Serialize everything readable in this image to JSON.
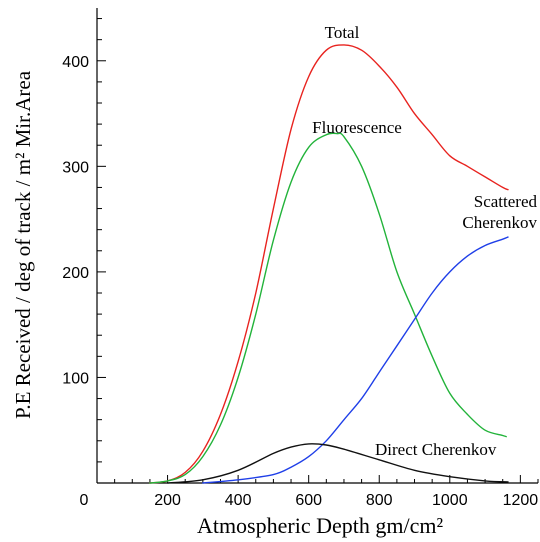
{
  "chart_data": {
    "type": "line",
    "xlabel": "Atmospheric Depth   gm/cm²",
    "ylabel": "P.E Received / deg of track / m² Mir.Area",
    "xlim": [
      0,
      1250
    ],
    "ylim": [
      0,
      450
    ],
    "x_ticks": [
      0,
      200,
      400,
      600,
      800,
      1000,
      1200
    ],
    "y_ticks": [
      100,
      200,
      300,
      400
    ],
    "grid": false,
    "series": [
      {
        "name": "Total",
        "color": "#e8231f",
        "x": [
          150,
          200,
          250,
          300,
          350,
          400,
          450,
          500,
          550,
          600,
          650,
          700,
          750,
          800,
          850,
          900,
          950,
          1000,
          1050,
          1100,
          1150,
          1165
        ],
        "y": [
          0,
          2,
          10,
          30,
          65,
          115,
          180,
          260,
          335,
          385,
          410,
          415,
          410,
          395,
          375,
          350,
          330,
          310,
          300,
          290,
          280,
          278
        ]
      },
      {
        "name": "Fluorescence",
        "color": "#22b33a",
        "x": [
          150,
          200,
          250,
          300,
          350,
          400,
          450,
          500,
          550,
          600,
          650,
          680,
          700,
          750,
          800,
          850,
          900,
          950,
          1000,
          1050,
          1100,
          1150,
          1160
        ],
        "y": [
          0,
          2,
          8,
          25,
          55,
          100,
          160,
          230,
          285,
          318,
          330,
          331,
          328,
          300,
          255,
          200,
          160,
          120,
          85,
          65,
          50,
          45,
          44
        ]
      },
      {
        "name": "Scattered Cherenkov",
        "color": "#1f3fe8",
        "x": [
          300,
          400,
          500,
          550,
          600,
          650,
          700,
          750,
          800,
          850,
          900,
          950,
          1000,
          1050,
          1100,
          1150,
          1165
        ],
        "y": [
          0,
          3,
          8,
          15,
          25,
          40,
          60,
          80,
          105,
          130,
          155,
          180,
          200,
          215,
          225,
          231,
          233
        ]
      },
      {
        "name": "Direct Cherenkov",
        "color": "#111111",
        "x": [
          200,
          300,
          400,
          500,
          550,
          600,
          650,
          700,
          800,
          900,
          1000,
          1100,
          1165
        ],
        "y": [
          0,
          3,
          12,
          28,
          34,
          37,
          36,
          32,
          22,
          12,
          6,
          2,
          1
        ]
      }
    ]
  }
}
